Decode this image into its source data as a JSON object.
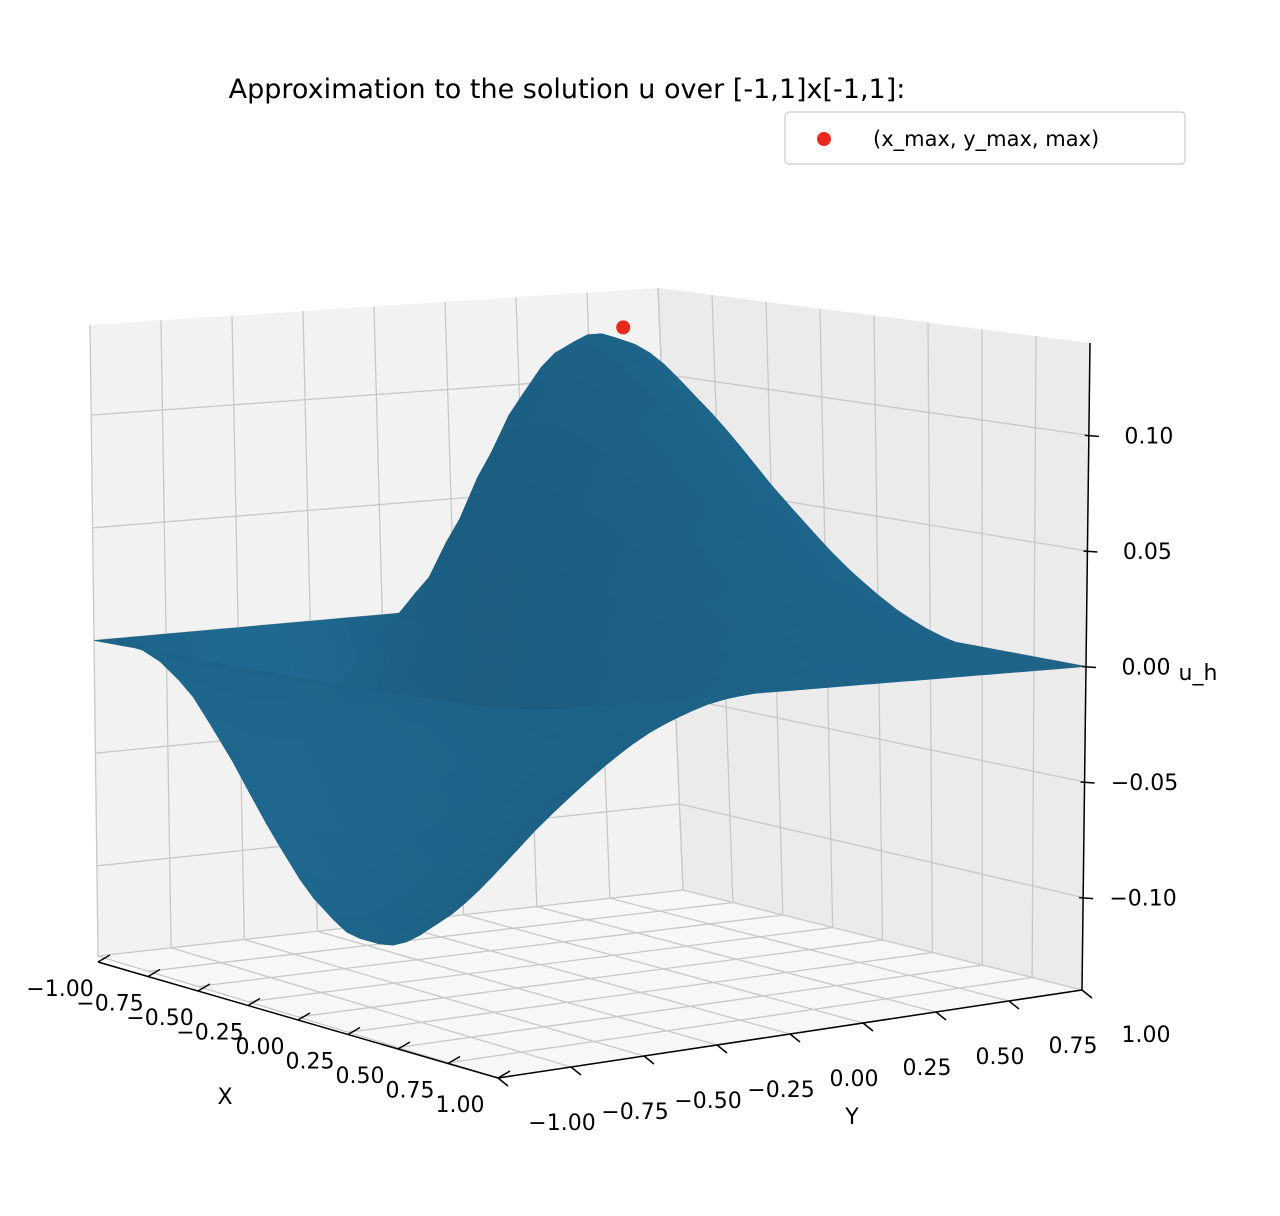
{
  "chart_data": {
    "type": "surface3d",
    "title": "Approximation to the solution u over [-1,1]x[-1,1]:",
    "xlabel": "X",
    "ylabel": "Y",
    "zlabel": "u_h",
    "xlim": [
      -1,
      1
    ],
    "ylim": [
      -1,
      1
    ],
    "zlim": [
      -0.14,
      0.14
    ],
    "x_ticks": [
      "−1.00",
      "−0.75",
      "−0.50",
      "−0.25",
      "0.00",
      "0.25",
      "0.50",
      "0.75",
      "1.00"
    ],
    "y_ticks": [
      "−1.00",
      "−0.75",
      "−0.50",
      "−0.25",
      "0.00",
      "0.25",
      "0.50",
      "0.75",
      "1.00"
    ],
    "z_ticks": [
      "−0.10",
      "−0.05",
      "0.00",
      "0.05",
      "0.10"
    ],
    "z_tick_values": [
      -0.1,
      -0.05,
      0,
      0.05,
      0.1
    ],
    "surface": {
      "function": "u(x,y) antisymmetric in x, vanishing on the boundary",
      "max": 0.13,
      "min": -0.13,
      "color": "#2479a6"
    },
    "max_point": {
      "x": 0.5,
      "y": 0.5,
      "z": 0.13
    },
    "legend": {
      "label": "(x_max, y_max, max)",
      "position": "top-right",
      "marker_color": "#e8291c"
    },
    "grid": true
  }
}
